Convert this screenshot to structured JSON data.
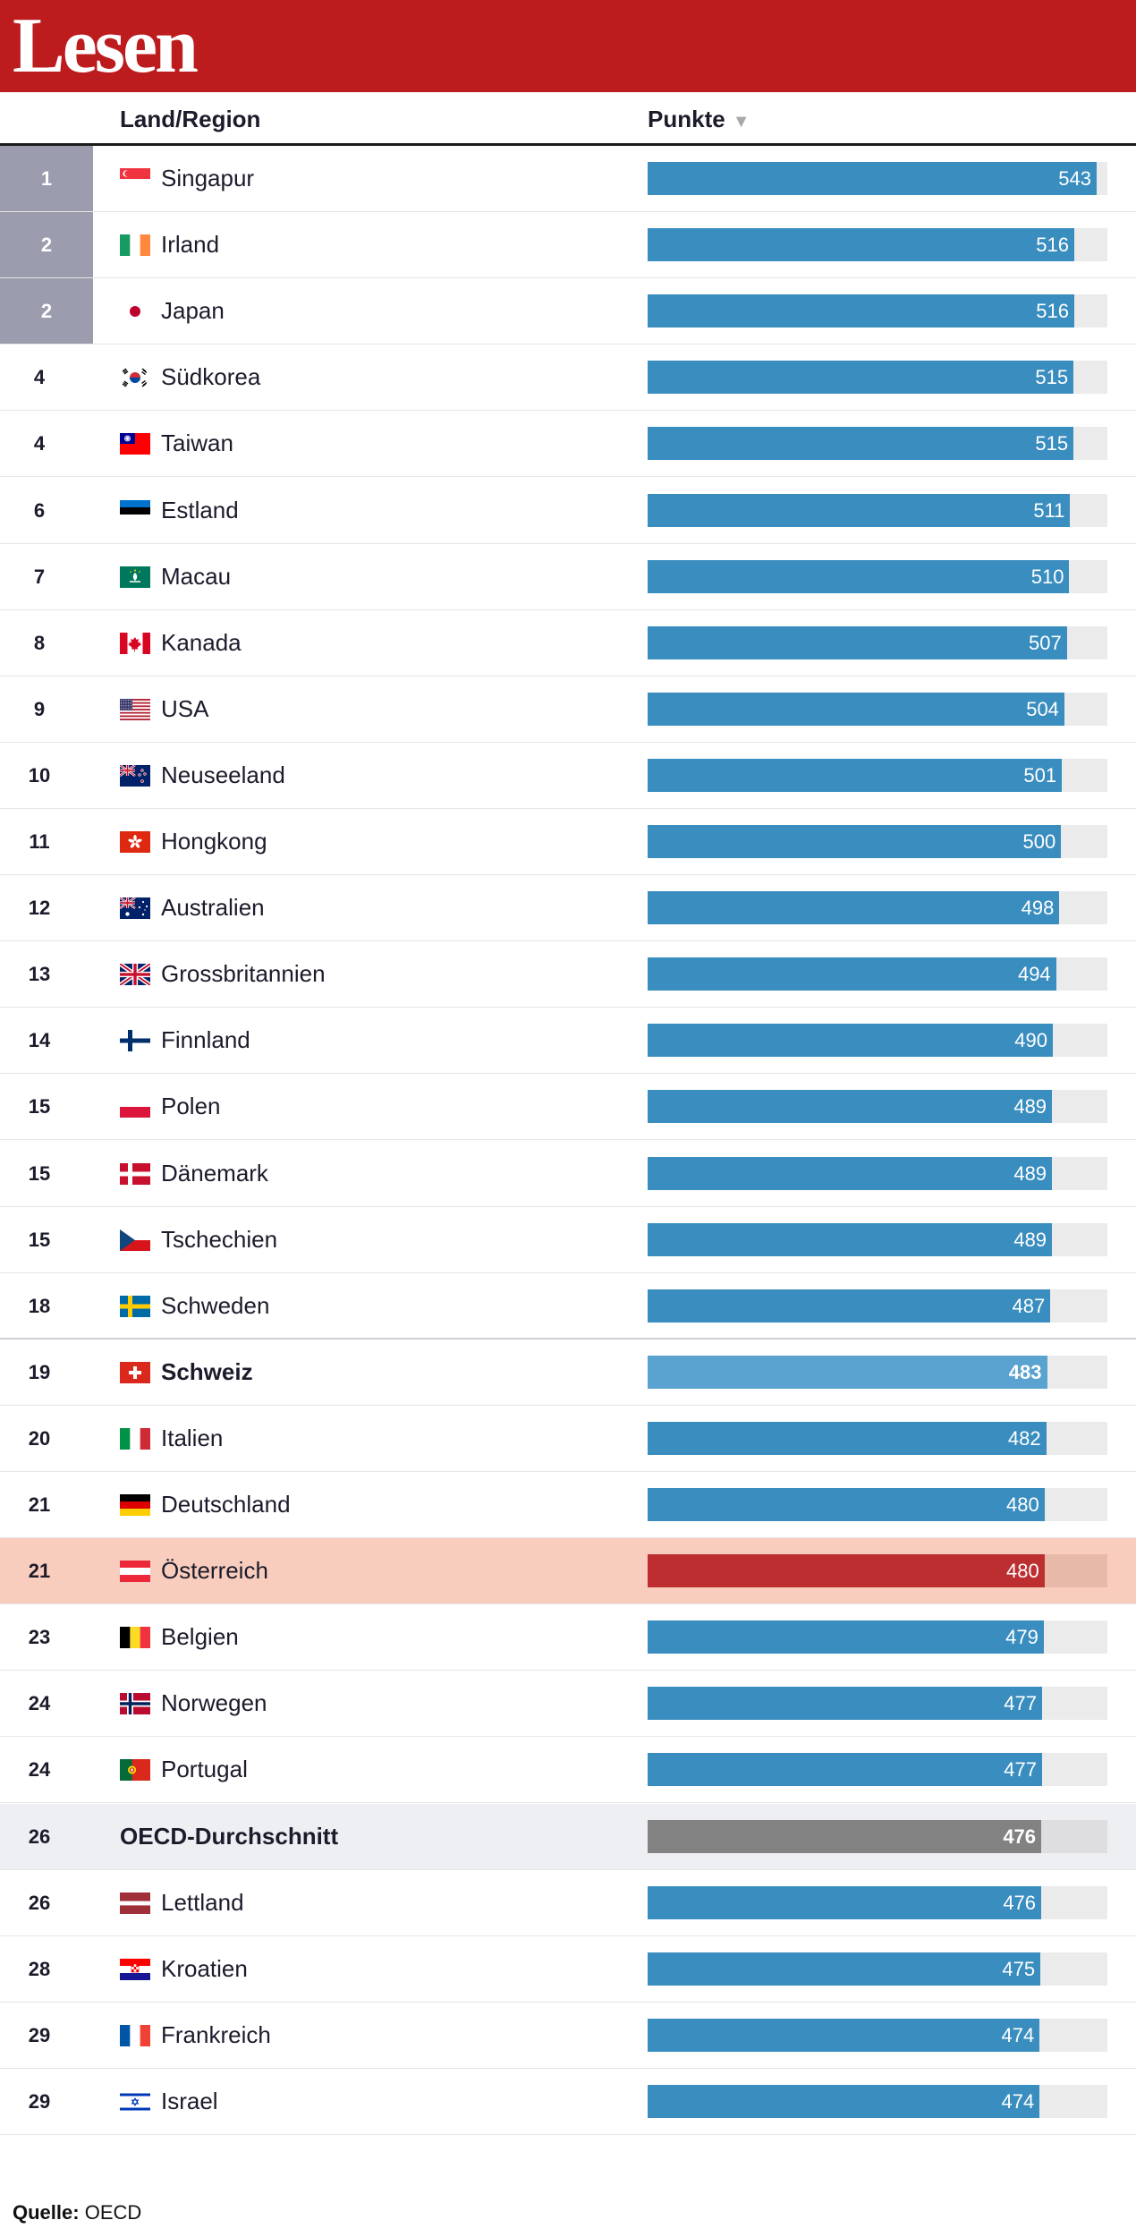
{
  "banner": {
    "title": "Lesen"
  },
  "header": {
    "col_land": "Land/Region",
    "col_punkte": "Punkte"
  },
  "source": {
    "label": "Quelle:",
    "value": "OECD"
  },
  "colors": {
    "banner": "#bd1c1f",
    "bar": "#3a8dbf",
    "bar_ch": "#5aa2cf",
    "bar_at": "#bd2e31",
    "bar_oecd": "#828282",
    "highlight_at": "#f9cdbd",
    "highlight_oecd": "#eeeff2",
    "top_rank": "#9b9cad"
  },
  "chart_data": {
    "type": "bar",
    "orientation": "horizontal",
    "title": "Lesen",
    "xlim": [
      0,
      556
    ],
    "rows": [
      {
        "rank": "1",
        "name": "Singapur",
        "value": 543,
        "flag": "sg",
        "top": true
      },
      {
        "rank": "2",
        "name": "Irland",
        "value": 516,
        "flag": "ie",
        "top": true
      },
      {
        "rank": "2",
        "name": "Japan",
        "value": 516,
        "flag": "jp",
        "top": true
      },
      {
        "rank": "4",
        "name": "Südkorea",
        "value": 515,
        "flag": "kr"
      },
      {
        "rank": "4",
        "name": "Taiwan",
        "value": 515,
        "flag": "tw"
      },
      {
        "rank": "6",
        "name": "Estland",
        "value": 511,
        "flag": "ee"
      },
      {
        "rank": "7",
        "name": "Macau",
        "value": 510,
        "flag": "mo"
      },
      {
        "rank": "8",
        "name": "Kanada",
        "value": 507,
        "flag": "ca"
      },
      {
        "rank": "9",
        "name": "USA",
        "value": 504,
        "flag": "us"
      },
      {
        "rank": "10",
        "name": "Neuseeland",
        "value": 501,
        "flag": "nz"
      },
      {
        "rank": "11",
        "name": "Hongkong",
        "value": 500,
        "flag": "hk"
      },
      {
        "rank": "12",
        "name": "Australien",
        "value": 498,
        "flag": "au"
      },
      {
        "rank": "13",
        "name": "Grossbritannien",
        "value": 494,
        "flag": "gb"
      },
      {
        "rank": "14",
        "name": "Finnland",
        "value": 490,
        "flag": "fi"
      },
      {
        "rank": "15",
        "name": "Polen",
        "value": 489,
        "flag": "pl"
      },
      {
        "rank": "15",
        "name": "Dänemark",
        "value": 489,
        "flag": "dk"
      },
      {
        "rank": "15",
        "name": "Tschechien",
        "value": 489,
        "flag": "cz"
      },
      {
        "rank": "18",
        "name": "Schweden",
        "value": 487,
        "flag": "se",
        "separator": true
      },
      {
        "rank": "19",
        "name": "Schweiz",
        "value": 483,
        "flag": "ch",
        "bold": true,
        "style": "ch"
      },
      {
        "rank": "20",
        "name": "Italien",
        "value": 482,
        "flag": "it"
      },
      {
        "rank": "21",
        "name": "Deutschland",
        "value": 480,
        "flag": "de"
      },
      {
        "rank": "21",
        "name": "Österreich",
        "value": 480,
        "flag": "at",
        "style": "at"
      },
      {
        "rank": "23",
        "name": "Belgien",
        "value": 479,
        "flag": "be"
      },
      {
        "rank": "24",
        "name": "Norwegen",
        "value": 477,
        "flag": "no"
      },
      {
        "rank": "24",
        "name": "Portugal",
        "value": 477,
        "flag": "pt"
      },
      {
        "rank": "26",
        "name": "OECD-Durchschnitt",
        "value": 476,
        "flag": null,
        "bold": true,
        "style": "oecd"
      },
      {
        "rank": "26",
        "name": "Lettland",
        "value": 476,
        "flag": "lv"
      },
      {
        "rank": "28",
        "name": "Kroatien",
        "value": 475,
        "flag": "hr"
      },
      {
        "rank": "29",
        "name": "Frankreich",
        "value": 474,
        "flag": "fr"
      },
      {
        "rank": "29",
        "name": "Israel",
        "value": 474,
        "flag": "il"
      }
    ]
  }
}
